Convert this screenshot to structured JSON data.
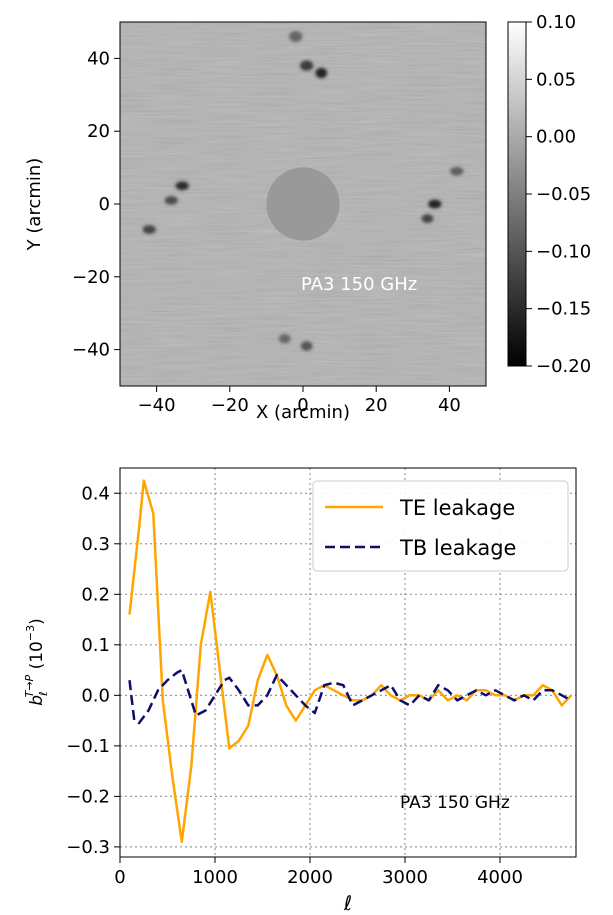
{
  "chart_data": [
    {
      "type": "heatmap",
      "annotation": "PA3 150 GHz",
      "xlabel": "X (arcmin)",
      "ylabel": "Y (arcmin)",
      "xlim": [
        -50,
        50
      ],
      "ylim": [
        -50,
        50
      ],
      "xticks": [
        -40,
        -20,
        0,
        20,
        40
      ],
      "yticks": [
        40,
        20,
        0,
        -20,
        -40
      ],
      "colormap": "gray",
      "colorbar": {
        "min": -0.2,
        "max": 0.1,
        "ticks": [
          "0.10",
          "0.05",
          "0.00",
          "−0.05",
          "−0.10",
          "−0.15",
          "−0.20"
        ],
        "tick_values": [
          0.1,
          0.05,
          0.0,
          -0.05,
          -0.1,
          -0.15,
          -0.2
        ]
      },
      "background_value": 0.01,
      "masked_region": {
        "center": [
          0,
          0
        ],
        "radius": 10,
        "value": -0.02
      },
      "features": [
        {
          "x": 1,
          "y": 38,
          "value": -0.13,
          "sx": 1.8,
          "sy": 1.4
        },
        {
          "x": 5,
          "y": 36,
          "value": -0.16,
          "sx": 1.6,
          "sy": 1.4
        },
        {
          "x": -2,
          "y": 46,
          "value": -0.08,
          "sx": 1.8,
          "sy": 1.5
        },
        {
          "x": -33,
          "y": 5,
          "value": -0.15,
          "sx": 1.8,
          "sy": 1.2
        },
        {
          "x": -36,
          "y": 1,
          "value": -0.11,
          "sx": 1.8,
          "sy": 1.2
        },
        {
          "x": -42,
          "y": -7,
          "value": -0.12,
          "sx": 1.8,
          "sy": 1.2
        },
        {
          "x": 36,
          "y": 0,
          "value": -0.16,
          "sx": 1.8,
          "sy": 1.2
        },
        {
          "x": 34,
          "y": -4,
          "value": -0.12,
          "sx": 1.6,
          "sy": 1.2
        },
        {
          "x": 42,
          "y": 9,
          "value": -0.09,
          "sx": 1.8,
          "sy": 1.2
        },
        {
          "x": 1,
          "y": -39,
          "value": -0.1,
          "sx": 1.6,
          "sy": 1.3
        },
        {
          "x": -5,
          "y": -37,
          "value": -0.08,
          "sx": 1.6,
          "sy": 1.3
        }
      ]
    },
    {
      "type": "line",
      "annotation": "PA3 150 GHz",
      "xlabel": "ℓ",
      "ylabel": "b_ℓ^{T→P} (10^{−3})",
      "ylabel_parts": {
        "base": "b",
        "sub": "ℓ",
        "sup": "T→P",
        "unit_open": " (10",
        "unit_exp": "−3",
        "unit_close": ")"
      },
      "xlim": [
        0,
        4800
      ],
      "ylim": [
        -0.32,
        0.45
      ],
      "xticks": [
        0,
        1000,
        2000,
        3000,
        4000
      ],
      "yticks": [
        0.4,
        0.3,
        0.2,
        0.1,
        0.0,
        -0.1,
        -0.2,
        -0.3
      ],
      "ytick_labels": [
        "0.4",
        "0.3",
        "0.2",
        "0.1",
        "0.0",
        "−0.1",
        "−0.2",
        "−0.3"
      ],
      "grid": true,
      "legend_position": "top-right",
      "series": [
        {
          "name": "TE leakage",
          "color": "#ffa500",
          "style": "solid",
          "x": [
            100,
            200,
            250,
            350,
            450,
            550,
            650,
            750,
            850,
            950,
            1050,
            1150,
            1250,
            1350,
            1450,
            1550,
            1650,
            1750,
            1850,
            1950,
            2050,
            2150,
            2250,
            2350,
            2450,
            2550,
            2650,
            2750,
            2850,
            2950,
            3050,
            3150,
            3250,
            3350,
            3450,
            3550,
            3650,
            3750,
            3850,
            3950,
            4050,
            4150,
            4250,
            4350,
            4450,
            4550,
            4650,
            4750
          ],
          "y": [
            0.16,
            0.33,
            0.425,
            0.36,
            -0.01,
            -0.16,
            -0.29,
            -0.14,
            0.1,
            0.205,
            0.05,
            -0.105,
            -0.09,
            -0.06,
            0.03,
            0.08,
            0.04,
            -0.02,
            -0.05,
            -0.02,
            0.01,
            0.02,
            0.01,
            0.0,
            -0.01,
            -0.01,
            0.0,
            0.02,
            0.0,
            -0.01,
            0.0,
            0.0,
            -0.01,
            0.01,
            -0.01,
            0.0,
            -0.01,
            0.01,
            0.01,
            0.0,
            0.0,
            -0.01,
            0.0,
            0.0,
            0.02,
            0.01,
            -0.02,
            0.0
          ]
        },
        {
          "name": "TB leakage",
          "color": "#0d0d6b",
          "style": "dashed",
          "x": [
            100,
            150,
            200,
            300,
            400,
            500,
            600,
            650,
            700,
            800,
            900,
            1000,
            1100,
            1150,
            1250,
            1350,
            1450,
            1550,
            1650,
            1750,
            1850,
            1950,
            2050,
            2150,
            2250,
            2350,
            2450,
            2550,
            2650,
            2750,
            2850,
            2950,
            3050,
            3150,
            3250,
            3350,
            3450,
            3550,
            3650,
            3750,
            3850,
            3950,
            4050,
            4150,
            4250,
            4350,
            4450,
            4550,
            4650,
            4750
          ],
          "y": [
            0.03,
            -0.05,
            -0.055,
            -0.03,
            0.01,
            0.03,
            0.045,
            0.05,
            0.02,
            -0.04,
            -0.03,
            0.0,
            0.03,
            0.035,
            0.01,
            -0.02,
            -0.02,
            0.0,
            0.04,
            0.02,
            0.0,
            -0.02,
            -0.035,
            0.02,
            0.025,
            0.02,
            -0.02,
            -0.01,
            0.0,
            0.01,
            0.02,
            -0.01,
            -0.02,
            0.0,
            -0.01,
            0.02,
            0.01,
            -0.01,
            0.0,
            0.01,
            0.0,
            0.01,
            0.0,
            -0.01,
            0.0,
            -0.01,
            0.01,
            0.01,
            0.0,
            -0.01
          ]
        }
      ]
    }
  ]
}
